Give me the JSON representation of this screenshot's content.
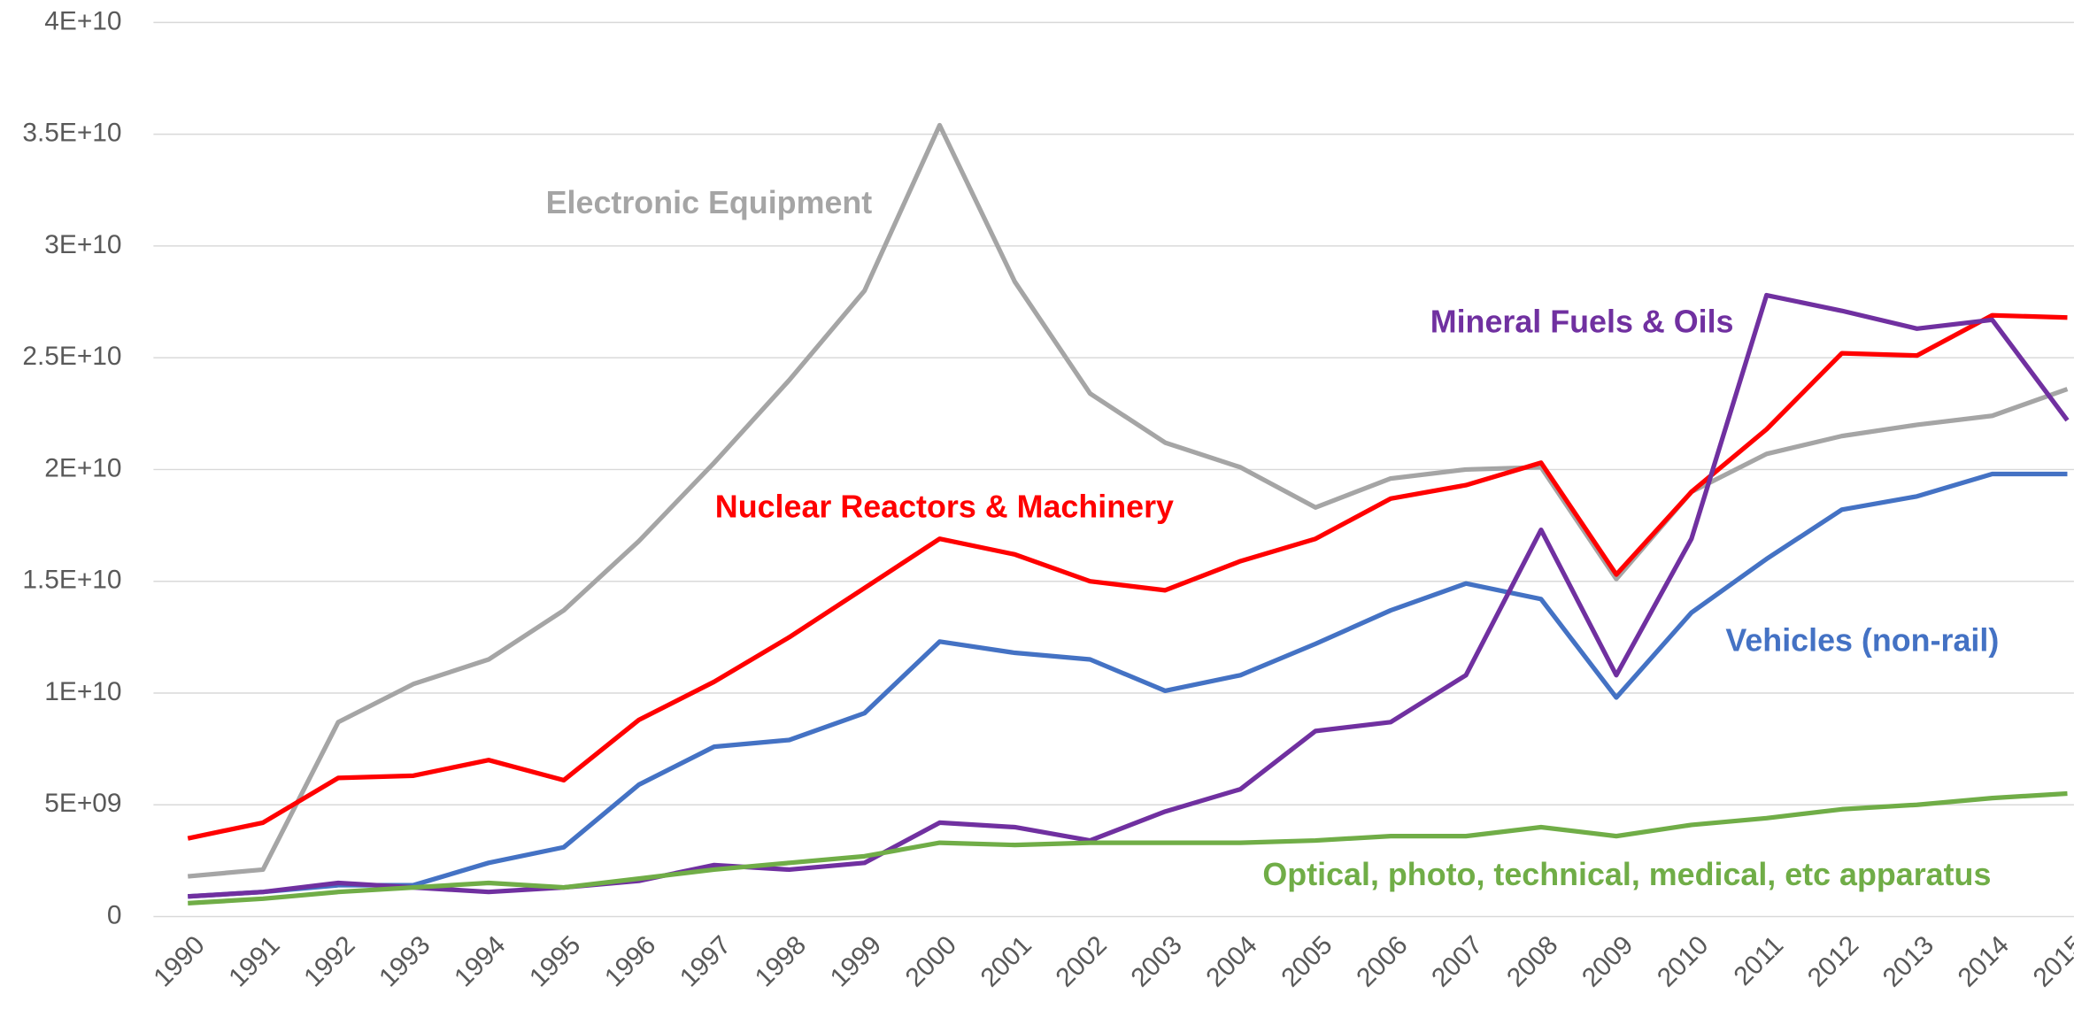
{
  "chart_data": {
    "type": "line",
    "categories": [
      "1990",
      "1991",
      "1992",
      "1993",
      "1994",
      "1995",
      "1996",
      "1997",
      "1998",
      "1999",
      "2000",
      "2001",
      "2002",
      "2003",
      "2004",
      "2005",
      "2006",
      "2007",
      "2008",
      "2009",
      "2010",
      "2011",
      "2012",
      "2013",
      "2014",
      "2015"
    ],
    "ylim": [
      0,
      40000000000.0
    ],
    "yticks": [
      0,
      {
        "value": 5000000000.0,
        "label": "5E+09"
      },
      {
        "value": 10000000000.0,
        "label": "1E+10"
      },
      {
        "value": 15000000000.0,
        "label": "1.5E+10"
      },
      {
        "value": 20000000000.0,
        "label": "2E+10"
      },
      {
        "value": 25000000000.0,
        "label": "2.5E+10"
      },
      {
        "value": 30000000000.0,
        "label": "3E+10"
      },
      {
        "value": 35000000000.0,
        "label": "3.5E+10"
      },
      {
        "value": 40000000000.0,
        "label": "4E+10"
      }
    ],
    "grid": true,
    "series": [
      {
        "name": "Electronic Equipment",
        "color": "#a5a5a5",
        "values": [
          1800000000.0,
          2100000000.0,
          8700000000.0,
          10400000000.0,
          11500000000.0,
          13700000000.0,
          16800000000.0,
          20300000000.0,
          24000000000.0,
          28000000000.0,
          35400000000.0,
          28400000000.0,
          23400000000.0,
          21200000000.0,
          20100000000.0,
          18300000000.0,
          19600000000.0,
          20000000000.0,
          20100000000.0,
          15100000000.0,
          19000000000.0,
          20700000000.0,
          21500000000.0,
          22000000000.0,
          22400000000.0,
          23600000000.0
        ]
      },
      {
        "name": "Nuclear Reactors & Machinery",
        "color": "#ff0000",
        "values": [
          3500000000.0,
          4200000000.0,
          6200000000.0,
          6300000000.0,
          7000000000.0,
          6100000000.0,
          8800000000.0,
          10500000000.0,
          12500000000.0,
          14700000000.0,
          16900000000.0,
          16200000000.0,
          15000000000.0,
          14600000000.0,
          15900000000.0,
          16900000000.0,
          18700000000.0,
          19300000000.0,
          20300000000.0,
          15300000000.0,
          19000000000.0,
          21800000000.0,
          25200000000.0,
          25100000000.0,
          26900000000.0,
          26800000000.0
        ]
      },
      {
        "name": "Vehicles (non-rail)",
        "color": "#4472c4",
        "values": [
          900000000.0,
          1100000000.0,
          1400000000.0,
          1400000000.0,
          2400000000.0,
          3100000000.0,
          5900000000.0,
          7600000000.0,
          7900000000.0,
          9100000000.0,
          12300000000.0,
          11800000000.0,
          11500000000.0,
          10100000000.0,
          10800000000.0,
          12200000000.0,
          13700000000.0,
          14900000000.0,
          14200000000.0,
          9800000000.0,
          13600000000.0,
          16000000000.0,
          18200000000.0,
          18800000000.0,
          19800000000.0,
          19800000000.0
        ]
      },
      {
        "name": "Mineral Fuels & Oils",
        "color": "#7030a0",
        "values": [
          900000000.0,
          1100000000.0,
          1500000000.0,
          1300000000.0,
          1100000000.0,
          1300000000.0,
          1600000000.0,
          2300000000.0,
          2100000000.0,
          2400000000.0,
          4200000000.0,
          4000000000.0,
          3400000000.0,
          4700000000.0,
          5700000000.0,
          8300000000.0,
          8700000000.0,
          10800000000.0,
          17300000000.0,
          10800000000.0,
          16900000000.0,
          27800000000.0,
          27100000000.0,
          26300000000.0,
          26700000000.0,
          22200000000.0
        ]
      },
      {
        "name": "Optical, photo, technical, medical, etc apparatus",
        "color": "#70ad47",
        "values": [
          600000000.0,
          800000000.0,
          1100000000.0,
          1300000000.0,
          1500000000.0,
          1300000000.0,
          1700000000.0,
          2100000000.0,
          2400000000.0,
          2700000000.0,
          3300000000.0,
          3200000000.0,
          3300000000.0,
          3300000000.0,
          3300000000.0,
          3400000000.0,
          3600000000.0,
          3600000000.0,
          4000000000.0,
          3600000000.0,
          4100000000.0,
          4400000000.0,
          4800000000.0,
          5000000000.0,
          5300000000.0,
          5500000000.0
        ]
      }
    ]
  }
}
